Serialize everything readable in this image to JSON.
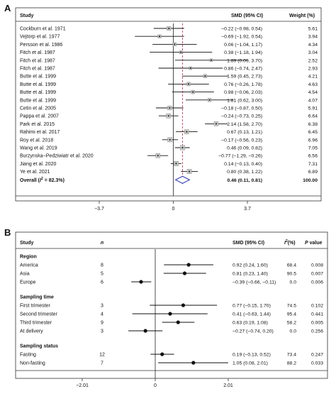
{
  "chart_data": [
    {
      "panel_label": "A",
      "type": "forest",
      "header": {
        "study": "Study",
        "smd": "SMD (95% CI)",
        "weight": "Weight (%)"
      },
      "xlim": [
        -3.7,
        3.7
      ],
      "ticks": [
        "-3.7",
        "0",
        "3.7"
      ],
      "reference_line": 0,
      "pooled_line": 0.46,
      "studies": [
        {
          "name": "Cockburn et al. 1971",
          "smd": -0.22,
          "lo": -0.98,
          "hi": 0.54,
          "ci_text": "−0.22 (−0.98, 0.54)",
          "weight": "5.61"
        },
        {
          "name": "Vejtorp et al. 1977",
          "smd": -0.69,
          "lo": -1.92,
          "hi": 0.54,
          "ci_text": "−0.69 (−1.92, 0.54)",
          "weight": "3.94"
        },
        {
          "name": "Persson et al. 1986",
          "smd": 0.06,
          "lo": -1.04,
          "hi": 1.17,
          "ci_text": "0.06 (−1.04, 1.17)",
          "weight": "4.34"
        },
        {
          "name": "Fitch et al. 1987",
          "smd": 0.38,
          "lo": -1.18,
          "hi": 1.94,
          "ci_text": "0.38 (−1.18, 1.94)",
          "weight": "3.04"
        },
        {
          "name": "Fitch et al. 1987",
          "smd": 1.89,
          "lo": 0.09,
          "hi": 3.7,
          "ci_text": "1.89 (0.09, 3.70)",
          "weight": "2.52"
        },
        {
          "name": "Fitch et al. 1987",
          "smd": 0.86,
          "lo": -0.74,
          "hi": 2.47,
          "ci_text": "0.86 (−0.74, 2.47)",
          "weight": "2.93"
        },
        {
          "name": "Butte et al. 1999",
          "smd": 1.59,
          "lo": 0.45,
          "hi": 2.73,
          "ci_text": "1.59 (0.45, 2.73)",
          "weight": "4.21"
        },
        {
          "name": "Butte et al. 1999",
          "smd": 0.76,
          "lo": -0.26,
          "hi": 1.78,
          "ci_text": "0.76 (−0.26, 1.78)",
          "weight": "4.63"
        },
        {
          "name": "Butte et al. 1999",
          "smd": 0.98,
          "lo": -0.06,
          "hi": 2.03,
          "ci_text": "0.98 (−0.06, 2.03)",
          "weight": "4.54"
        },
        {
          "name": "Butte et al. 1999",
          "smd": 1.81,
          "lo": 0.62,
          "hi": 3.0,
          "ci_text": "1.81 (0.62, 3.00)",
          "weight": "4.07"
        },
        {
          "name": "Cetin et al. 2005",
          "smd": -0.18,
          "lo": -0.87,
          "hi": 0.5,
          "ci_text": "−0.18 (−0.87, 0.50)",
          "weight": "5.91"
        },
        {
          "name": "Pappa et al. 2007",
          "smd": -0.24,
          "lo": -0.73,
          "hi": 0.25,
          "ci_text": "−0.24 (−0.73, 0.25)",
          "weight": "6.64"
        },
        {
          "name": "Park et al. 2015",
          "smd": 2.14,
          "lo": 1.58,
          "hi": 2.7,
          "ci_text": "2.14 (1.58, 2.70)",
          "weight": "6.38"
        },
        {
          "name": "Rahimi et al. 2017",
          "smd": 0.67,
          "lo": 0.13,
          "hi": 1.21,
          "ci_text": "0.67 (0.13, 1.21)",
          "weight": "6.45"
        },
        {
          "name": "Roy et al. 2018",
          "smd": -0.17,
          "lo": -0.56,
          "hi": 0.23,
          "ci_text": "−0.17 (−0.56, 0.23)",
          "weight": "6.96"
        },
        {
          "name": "Wang et al. 2019",
          "smd": 0.46,
          "lo": 0.09,
          "hi": 0.82,
          "ci_text": "0.46 (0.09, 0.82)",
          "weight": "7.05"
        },
        {
          "name": "Burzynska−Pedziwiatr et al. 2020",
          "smd": -0.77,
          "lo": -1.29,
          "hi": -0.26,
          "ci_text": "−0.77 (−1.29, −0.26)",
          "weight": "6.56"
        },
        {
          "name": "Jiang et al. 2020",
          "smd": 0.14,
          "lo": -0.13,
          "hi": 0.4,
          "ci_text": "0.14 (−0.13, 0.40)",
          "weight": "7.31"
        },
        {
          "name": "Ye et al. 2021",
          "smd": 0.8,
          "lo": 0.38,
          "hi": 1.22,
          "ci_text": "0.80 (0.38, 1.22)",
          "weight": "6.89"
        }
      ],
      "overall": {
        "label_prefix": "Overall  (",
        "i2_symbol": "I",
        "i2_rest": " = 82.3%)",
        "smd": 0.46,
        "lo": 0.11,
        "hi": 0.81,
        "ci_text": "0.46 (0.11, 0.81)",
        "weight": "100.00"
      }
    },
    {
      "panel_label": "B",
      "type": "forest",
      "header": {
        "study": "Study",
        "n": "n",
        "smd": "SMD (95% CI)",
        "i2": "I",
        "i2_suffix": "(%)",
        "p": "P value"
      },
      "xlim": [
        -2.01,
        2.01
      ],
      "ticks": [
        "−2.01",
        "0",
        "2.01"
      ],
      "reference_line": 0,
      "rows": [
        {
          "kind": "group",
          "label": "Region"
        },
        {
          "kind": "item",
          "label": "America",
          "n": "8",
          "smd": 0.92,
          "lo": 0.24,
          "hi": 1.6,
          "ci_text": "0.92 (0.24, 1.60)",
          "i2": "68.4",
          "p": "0.008"
        },
        {
          "kind": "item",
          "label": "Asia",
          "n": "5",
          "smd": 0.81,
          "lo": 0.23,
          "hi": 1.4,
          "ci_text": "0.81 (0.23, 1.40)",
          "i2": "90.5",
          "p": "0.007"
        },
        {
          "kind": "item",
          "label": "Europe",
          "n": "6",
          "smd": -0.39,
          "lo": -0.66,
          "hi": -0.11,
          "ci_text": "−0.39 (−0.66, −0.11)",
          "i2": "0.0",
          "p": "0.006"
        },
        {
          "kind": "group",
          "label": "Sampling time"
        },
        {
          "kind": "item",
          "label": "First trimester",
          "n": "3",
          "smd": 0.77,
          "lo": -0.15,
          "hi": 1.7,
          "ci_text": "0.77 (−0.15, 1.70)",
          "i2": "74.5",
          "p": "0.102"
        },
        {
          "kind": "item",
          "label": "Second trimester",
          "n": "4",
          "smd": 0.41,
          "lo": -0.63,
          "hi": 1.44,
          "ci_text": "0.41 (−0.63, 1.44)",
          "i2": "95.4",
          "p": "0.441"
        },
        {
          "kind": "item",
          "label": "Third trimester",
          "n": "9",
          "smd": 0.63,
          "lo": 0.19,
          "hi": 1.08,
          "ci_text": "0.63 (0.19, 1.08)",
          "i2": "58.2",
          "p": "0.005"
        },
        {
          "kind": "item",
          "label": "At delivery",
          "n": "3",
          "smd": -0.27,
          "lo": -0.74,
          "hi": 0.2,
          "ci_text": "−0.27 (−0.74, 0.20)",
          "i2": "0.0",
          "p": "0.256"
        },
        {
          "kind": "group",
          "label": "Sampling status"
        },
        {
          "kind": "item",
          "label": "Fasting",
          "n": "12",
          "smd": 0.19,
          "lo": -0.13,
          "hi": 0.52,
          "ci_text": "0.19 (−0.13, 0.52)",
          "i2": "73.4",
          "p": "0.247"
        },
        {
          "kind": "item",
          "label": "Non-fasting",
          "n": "7",
          "smd": 1.05,
          "lo": 0.08,
          "hi": 2.01,
          "ci_text": "1.05 (0.08, 2.01)",
          "i2": "88.2",
          "p": "0.033"
        }
      ]
    }
  ]
}
